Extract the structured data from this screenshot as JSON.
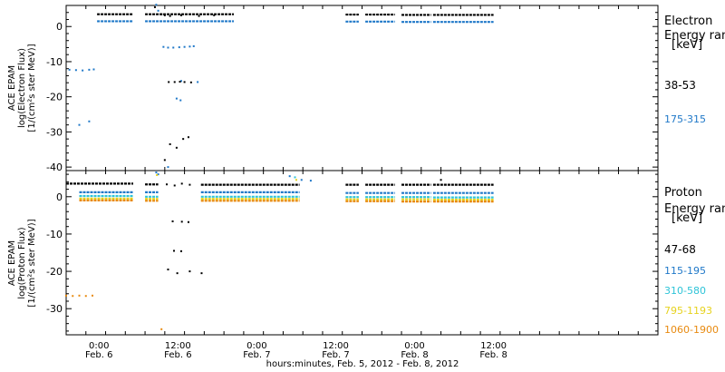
{
  "xaxis": {
    "title": "hours:minutes, Feb.  5, 2012 - Feb.  8, 2012",
    "range_hours": [
      -5,
      85
    ],
    "ticks": [
      {
        "h": 0,
        "time": "0:00",
        "date": "Feb. 6"
      },
      {
        "h": 12,
        "time": "12:00",
        "date": "Feb. 6"
      },
      {
        "h": 24,
        "time": "0:00",
        "date": "Feb. 7"
      },
      {
        "h": 36,
        "time": "12:00",
        "date": "Feb. 7"
      },
      {
        "h": 48,
        "time": "0:00",
        "date": "Feb. 8"
      },
      {
        "h": 60,
        "time": "12:00",
        "date": "Feb. 8"
      }
    ]
  },
  "panels": [
    {
      "id": "electron",
      "ylabel_lines": [
        "ACE EPAM",
        "log(Electron Flux)",
        "[1/(cm²s ster MeV)]"
      ],
      "legend_title_lines": [
        "Electron",
        "Energy range",
        "[keV]"
      ],
      "ylim": [
        -41,
        6
      ],
      "yticks": [
        0,
        -10,
        -20,
        -30,
        -40
      ],
      "series": [
        {
          "name": "38-53",
          "color": "#000000",
          "segments": [
            [
              -0.3,
              5.2,
              3.5
            ],
            [
              7.0,
              20.5,
              3.5
            ],
            [
              37.5,
              39.5,
              3.4
            ],
            [
              40.5,
              45.0,
              3.4
            ],
            [
              46.0,
              50.5,
              3.3
            ],
            [
              50.8,
              60.0,
              3.3
            ]
          ],
          "scatter": [
            [
              8.5,
              5.5
            ],
            [
              9.5,
              3.5
            ],
            [
              10.0,
              3.2
            ],
            [
              10.8,
              3.0
            ],
            [
              12.5,
              3.2
            ],
            [
              15.2,
              3.0
            ],
            [
              17.5,
              3.2
            ]
          ]
        },
        {
          "name": "175-315",
          "color": "#1f78c8",
          "segments": [
            [
              -0.3,
              5.2,
              1.5
            ],
            [
              7.0,
              20.5,
              1.5
            ],
            [
              37.5,
              39.5,
              1.4
            ],
            [
              40.5,
              45.0,
              1.4
            ],
            [
              46.0,
              50.5,
              1.3
            ],
            [
              50.8,
              60.0,
              1.3
            ]
          ],
          "scatter": [
            [
              -4.5,
              -12.3
            ],
            [
              -3.5,
              -12.4
            ],
            [
              -2.5,
              -12.5
            ],
            [
              -1.5,
              -12.3
            ],
            [
              -0.8,
              -12.2
            ],
            [
              -3.0,
              -28.0
            ],
            [
              -1.5,
              -27.0
            ],
            [
              8.7,
              6.2
            ],
            [
              9.0,
              4.5
            ],
            [
              9.8,
              -5.8
            ],
            [
              10.5,
              -6.0
            ],
            [
              11.3,
              -6.0
            ],
            [
              12.2,
              -5.9
            ],
            [
              13.0,
              -5.8
            ],
            [
              13.8,
              -5.7
            ],
            [
              14.4,
              -5.6
            ],
            [
              11.8,
              -20.5
            ],
            [
              12.4,
              -21.0
            ],
            [
              12.5,
              -15.5
            ],
            [
              15.0,
              -15.8
            ],
            [
              10.5,
              -40.0
            ]
          ]
        }
      ],
      "extra_black_scatter": [
        [
          10.6,
          -15.8
        ],
        [
          11.5,
          -15.8
        ],
        [
          12.3,
          -15.7
        ],
        [
          13.0,
          -15.8
        ],
        [
          14.0,
          -15.9
        ],
        [
          10.8,
          -33.5
        ],
        [
          11.8,
          -34.5
        ],
        [
          12.8,
          -32.0
        ],
        [
          13.6,
          -31.5
        ],
        [
          10.0,
          -38.0
        ]
      ]
    },
    {
      "id": "proton",
      "ylabel_lines": [
        "ACE EPAM",
        "log(Proton Flux)",
        "[1/(cm²s ster MeV)]"
      ],
      "legend_title_lines": [
        "Proton",
        "Energy range",
        "[keV]"
      ],
      "ylim": [
        -37,
        7
      ],
      "yticks": [
        0,
        -10,
        -20,
        -30
      ],
      "series": [
        {
          "name": "47-68",
          "color": "#000000",
          "segments": [
            [
              -5.0,
              5.2,
              3.5
            ],
            [
              7.0,
              9.0,
              3.3
            ],
            [
              15.5,
              30.5,
              3.2
            ],
            [
              37.5,
              39.5,
              3.2
            ],
            [
              40.5,
              45.0,
              3.2
            ],
            [
              46.0,
              50.5,
              3.2
            ],
            [
              50.8,
              60.0,
              3.2
            ]
          ],
          "scatter": [
            [
              10.3,
              3.3
            ],
            [
              11.5,
              3.0
            ],
            [
              12.6,
              3.5
            ],
            [
              13.8,
              3.2
            ],
            [
              11.2,
              -6.6
            ],
            [
              12.6,
              -6.7
            ],
            [
              13.6,
              -6.8
            ],
            [
              11.4,
              -14.5
            ],
            [
              12.5,
              -14.6
            ],
            [
              10.5,
              -19.5
            ],
            [
              11.9,
              -20.5
            ],
            [
              13.8,
              -20.0
            ],
            [
              15.6,
              -20.5
            ],
            [
              52.0,
              4.5
            ]
          ]
        },
        {
          "name": "115-195",
          "color": "#1f78c8",
          "segments": [
            [
              -3.0,
              5.2,
              1.2
            ],
            [
              7.0,
              9.0,
              1.2
            ],
            [
              15.5,
              30.5,
              1.2
            ],
            [
              37.5,
              39.5,
              1.0
            ],
            [
              40.5,
              45.0,
              1.0
            ],
            [
              46.0,
              50.5,
              1.0
            ],
            [
              50.8,
              60.0,
              1.0
            ]
          ],
          "scatter": [
            [
              8.7,
              6.5
            ],
            [
              9.0,
              6.0
            ],
            [
              29.0,
              5.5
            ],
            [
              30.8,
              4.5
            ],
            [
              32.2,
              4.3
            ]
          ]
        },
        {
          "name": "310-580",
          "color": "#2ec4d8",
          "segments": [
            [
              -3.0,
              5.2,
              0.2
            ],
            [
              7.0,
              9.0,
              0.0
            ],
            [
              15.5,
              30.5,
              0.0
            ],
            [
              37.5,
              39.5,
              -0.1
            ],
            [
              40.5,
              45.0,
              -0.1
            ],
            [
              46.0,
              50.5,
              -0.1
            ],
            [
              50.8,
              60.0,
              -0.2
            ]
          ],
          "scatter": [
            [
              29.8,
              5.2
            ]
          ]
        },
        {
          "name": "795-1193",
          "color": "#e6d21e",
          "segments": [
            [
              -3.0,
              5.2,
              -0.5
            ],
            [
              7.0,
              9.0,
              -0.6
            ],
            [
              15.5,
              30.5,
              -0.6
            ],
            [
              37.5,
              39.5,
              -0.7
            ],
            [
              40.5,
              45.0,
              -0.7
            ],
            [
              46.0,
              50.5,
              -0.7
            ],
            [
              50.8,
              60.0,
              -0.8
            ]
          ],
          "scatter": [
            [
              8.8,
              5.8
            ],
            [
              30.0,
              4.5
            ]
          ]
        },
        {
          "name": "1060-1900",
          "color": "#e88a10",
          "segments": [
            [
              -3.0,
              5.2,
              -1.0
            ],
            [
              7.0,
              9.0,
              -1.1
            ],
            [
              15.5,
              30.5,
              -1.1
            ],
            [
              37.5,
              39.5,
              -1.2
            ],
            [
              40.5,
              45.0,
              -1.2
            ],
            [
              46.0,
              50.5,
              -1.3
            ],
            [
              50.8,
              60.0,
              -1.3
            ]
          ],
          "scatter": [
            [
              -5.0,
              -26.5
            ],
            [
              -4.0,
              -26.6
            ],
            [
              -3.0,
              -26.5
            ],
            [
              -2.0,
              -26.6
            ],
            [
              -1.0,
              -26.5
            ],
            [
              9.5,
              -35.5
            ]
          ]
        }
      ],
      "extra_black_scatter": []
    }
  ]
}
